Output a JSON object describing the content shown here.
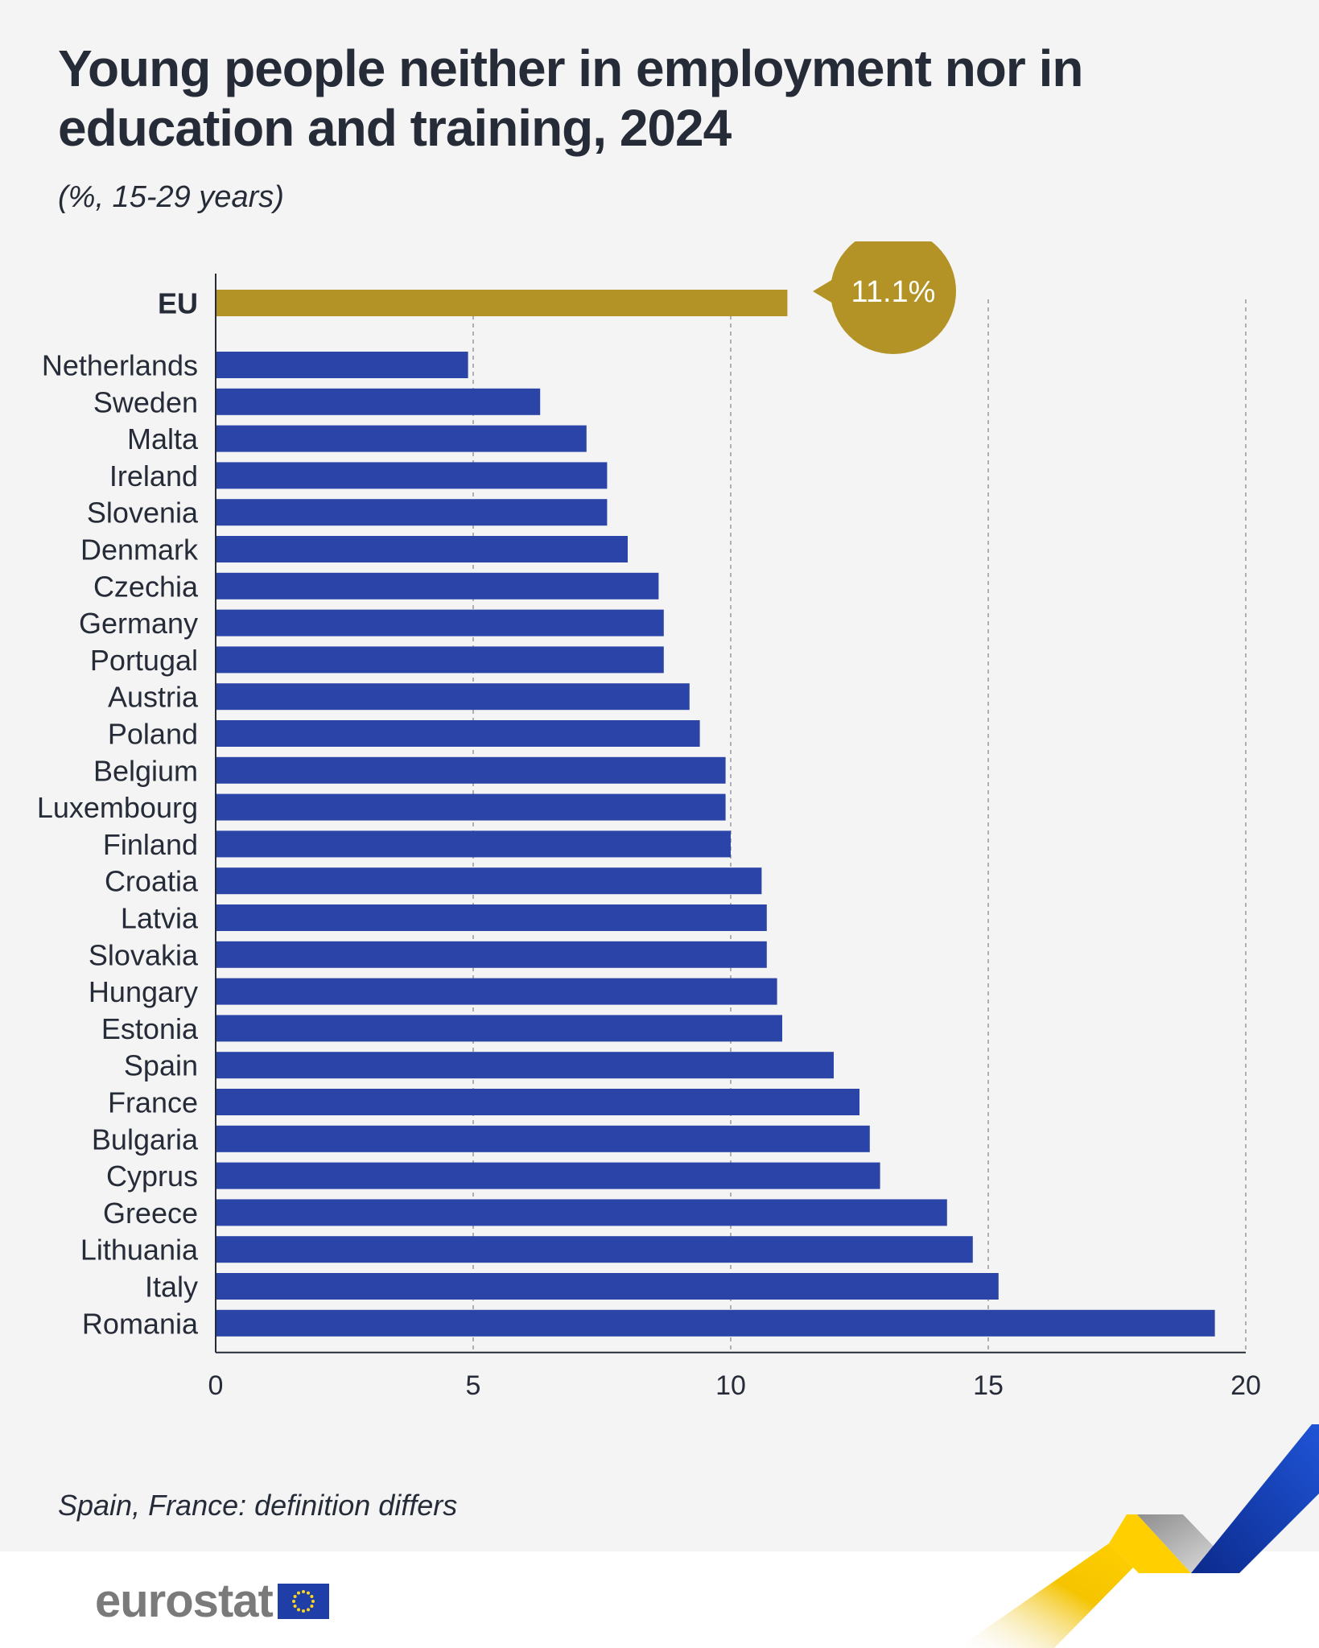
{
  "title": "Young people neither in employment nor in education and training, 2024",
  "subtitle": "(%, 15-29 years)",
  "note": "Spain, France: definition differs",
  "logo_text": "eurostat",
  "colors": {
    "bar": "#2b44a8",
    "eu_bar": "#b39326",
    "grid": "#9a9a9a",
    "axis": "#262b38"
  },
  "chart_data": {
    "type": "bar",
    "orientation": "horizontal",
    "title": "Young people neither in employment nor in education and training, 2024",
    "subtitle": "(%, 15-29 years)",
    "xlabel": "",
    "ylabel": "",
    "xlim": [
      0,
      20
    ],
    "xticks": [
      0,
      5,
      10,
      15,
      20
    ],
    "highlight": {
      "category": "EU",
      "value": 11.1,
      "label": "11.1%"
    },
    "categories": [
      "Netherlands",
      "Sweden",
      "Malta",
      "Ireland",
      "Slovenia",
      "Denmark",
      "Czechia",
      "Germany",
      "Portugal",
      "Austria",
      "Poland",
      "Belgium",
      "Luxembourg",
      "Finland",
      "Croatia",
      "Latvia",
      "Slovakia",
      "Hungary",
      "Estonia",
      "Spain",
      "France",
      "Bulgaria",
      "Cyprus",
      "Greece",
      "Lithuania",
      "Italy",
      "Romania"
    ],
    "values": [
      4.9,
      6.3,
      7.2,
      7.6,
      7.6,
      8.0,
      8.6,
      8.7,
      8.7,
      9.2,
      9.4,
      9.9,
      9.9,
      10.0,
      10.6,
      10.7,
      10.7,
      10.9,
      11.0,
      12.0,
      12.5,
      12.7,
      12.9,
      14.2,
      14.7,
      15.2,
      19.4
    ]
  }
}
